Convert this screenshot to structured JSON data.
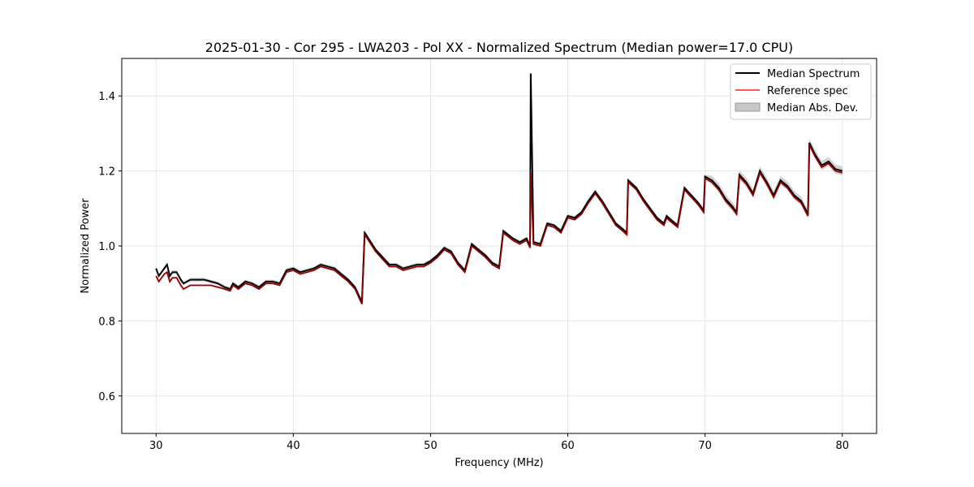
{
  "chart_data": {
    "type": "line",
    "title": "2025-01-30 - Cor 295 - LWA203 - Pol XX - Normalized Spectrum (Median power=17.0 CPU)",
    "xlabel": "Frequency (MHz)",
    "ylabel": "Normalized Power",
    "xlim": [
      27.5,
      82.5
    ],
    "ylim": [
      0.5,
      1.5
    ],
    "xticks": [
      30,
      40,
      50,
      60,
      70,
      80
    ],
    "yticks": [
      0.6,
      0.8,
      1.0,
      1.2,
      1.4
    ],
    "xtick_labels": [
      "30",
      "40",
      "50",
      "60",
      "70",
      "80"
    ],
    "ytick_labels": [
      "0.6",
      "0.8",
      "1.0",
      "1.2",
      "1.4"
    ],
    "grid": true,
    "legend_position": "top-right",
    "legend": [
      "Median Spectrum",
      "Reference spec",
      "Median Abs. Dev."
    ],
    "colors": {
      "median": "#000000",
      "reference": "#ff5a5a",
      "overlap": "#8b0000",
      "mad": "#c8c8c8"
    },
    "series": [
      {
        "name": "Median Spectrum",
        "x": [
          30.0,
          30.2,
          30.4,
          30.6,
          30.8,
          31.0,
          31.2,
          31.5,
          31.8,
          32.0,
          32.5,
          33.0,
          33.5,
          34.0,
          34.5,
          35.0,
          35.4,
          35.6,
          36.0,
          36.5,
          37.0,
          37.5,
          38.0,
          38.5,
          39.0,
          39.5,
          40.0,
          40.5,
          41.0,
          41.5,
          42.0,
          42.5,
          43.0,
          43.5,
          44.0,
          44.5,
          45.0,
          45.2,
          45.3,
          46.0,
          46.5,
          47.0,
          47.5,
          48.0,
          48.5,
          49.0,
          49.5,
          50.0,
          50.5,
          51.0,
          51.5,
          52.0,
          52.5,
          53.0,
          53.5,
          54.0,
          54.5,
          55.0,
          55.3,
          56.0,
          56.5,
          57.0,
          57.25,
          57.3,
          57.5,
          58.0,
          58.5,
          59.0,
          59.5,
          60.0,
          60.5,
          61.0,
          61.5,
          62.0,
          62.5,
          63.0,
          63.5,
          64.0,
          64.3,
          64.4,
          65.0,
          65.5,
          66.0,
          66.5,
          67.0,
          67.2,
          67.5,
          68.0,
          68.5,
          69.0,
          69.5,
          69.9,
          70.0,
          70.5,
          71.0,
          71.5,
          72.0,
          72.3,
          72.5,
          73.0,
          73.5,
          74.0,
          74.5,
          75.0,
          75.5,
          76.0,
          76.5,
          77.0,
          77.5,
          77.6,
          78.0,
          78.5,
          79.0,
          79.5,
          80.0
        ],
        "values": [
          0.94,
          0.92,
          0.93,
          0.94,
          0.95,
          0.92,
          0.93,
          0.93,
          0.91,
          0.9,
          0.91,
          0.91,
          0.91,
          0.905,
          0.9,
          0.89,
          0.885,
          0.9,
          0.89,
          0.905,
          0.9,
          0.89,
          0.905,
          0.905,
          0.9,
          0.935,
          0.94,
          0.93,
          0.935,
          0.94,
          0.95,
          0.945,
          0.94,
          0.925,
          0.91,
          0.89,
          0.85,
          1.035,
          1.03,
          0.99,
          0.97,
          0.95,
          0.95,
          0.94,
          0.945,
          0.95,
          0.95,
          0.96,
          0.975,
          0.995,
          0.985,
          0.955,
          0.935,
          1.005,
          0.99,
          0.975,
          0.955,
          0.945,
          1.04,
          1.02,
          1.01,
          1.02,
          1.0,
          1.46,
          1.01,
          1.005,
          1.06,
          1.055,
          1.04,
          1.08,
          1.075,
          1.09,
          1.12,
          1.145,
          1.12,
          1.09,
          1.06,
          1.045,
          1.035,
          1.175,
          1.155,
          1.125,
          1.1,
          1.075,
          1.06,
          1.08,
          1.07,
          1.055,
          1.155,
          1.135,
          1.115,
          1.095,
          1.185,
          1.175,
          1.155,
          1.125,
          1.105,
          1.09,
          1.19,
          1.17,
          1.14,
          1.2,
          1.17,
          1.135,
          1.175,
          1.16,
          1.135,
          1.12,
          1.085,
          1.275,
          1.245,
          1.215,
          1.225,
          1.205,
          1.2
        ]
      },
      {
        "name": "Reference spec",
        "x": [
          30.0,
          30.2,
          30.4,
          30.6,
          30.8,
          31.0,
          31.2,
          31.5,
          31.8,
          32.0,
          32.5,
          33.0,
          33.5,
          34.0,
          34.5,
          35.0,
          35.4,
          35.6,
          36.0,
          36.5,
          37.0,
          37.5,
          38.0,
          38.5,
          39.0,
          39.5,
          40.0,
          40.5,
          41.0,
          41.5,
          42.0,
          42.5,
          43.0,
          43.5,
          44.0,
          44.5,
          45.0,
          45.2,
          45.3,
          46.0,
          46.5,
          47.0,
          47.5,
          48.0,
          48.5,
          49.0,
          49.5,
          50.0,
          50.5,
          51.0,
          51.5,
          52.0,
          52.5,
          53.0,
          53.5,
          54.0,
          54.5,
          55.0,
          55.3,
          56.0,
          56.5,
          57.0,
          57.25,
          57.3,
          57.5,
          58.0,
          58.5,
          59.0,
          59.5,
          60.0,
          60.5,
          61.0,
          61.5,
          62.0,
          62.5,
          63.0,
          63.5,
          64.0,
          64.3,
          64.4,
          65.0,
          65.5,
          66.0,
          66.5,
          67.0,
          67.2,
          67.5,
          68.0,
          68.5,
          69.0,
          69.5,
          69.9,
          70.0,
          70.5,
          71.0,
          71.5,
          72.0,
          72.3,
          72.5,
          73.0,
          73.5,
          74.0,
          74.5,
          75.0,
          75.5,
          76.0,
          76.5,
          77.0,
          77.5,
          77.6,
          78.0,
          78.5,
          79.0,
          79.5,
          80.0
        ],
        "values": [
          0.92,
          0.905,
          0.915,
          0.925,
          0.93,
          0.905,
          0.915,
          0.915,
          0.895,
          0.885,
          0.895,
          0.895,
          0.895,
          0.895,
          0.89,
          0.885,
          0.88,
          0.895,
          0.885,
          0.9,
          0.895,
          0.885,
          0.9,
          0.9,
          0.895,
          0.93,
          0.935,
          0.925,
          0.93,
          0.935,
          0.945,
          0.94,
          0.935,
          0.92,
          0.905,
          0.885,
          0.845,
          1.03,
          1.025,
          0.985,
          0.965,
          0.945,
          0.945,
          0.935,
          0.94,
          0.945,
          0.945,
          0.955,
          0.97,
          0.99,
          0.98,
          0.95,
          0.93,
          1.0,
          0.985,
          0.97,
          0.95,
          0.94,
          1.035,
          1.015,
          1.005,
          1.015,
          0.995,
          1.195,
          1.005,
          1.0,
          1.055,
          1.05,
          1.035,
          1.075,
          1.07,
          1.085,
          1.115,
          1.14,
          1.115,
          1.085,
          1.055,
          1.04,
          1.03,
          1.17,
          1.15,
          1.12,
          1.095,
          1.07,
          1.055,
          1.075,
          1.065,
          1.05,
          1.15,
          1.13,
          1.11,
          1.09,
          1.18,
          1.17,
          1.15,
          1.12,
          1.1,
          1.085,
          1.185,
          1.165,
          1.135,
          1.195,
          1.165,
          1.13,
          1.17,
          1.155,
          1.13,
          1.115,
          1.08,
          1.27,
          1.24,
          1.21,
          1.22,
          1.2,
          1.195
        ]
      }
    ]
  }
}
